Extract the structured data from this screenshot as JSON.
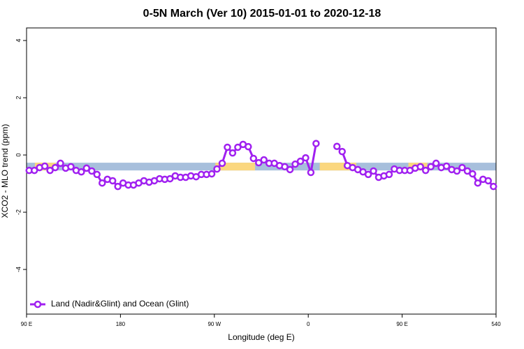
{
  "chart_data": {
    "type": "line",
    "title": "0-5N March (Ver 10)   2015-01-01 to 2020-12-18",
    "xlabel": "Longitude (deg E)",
    "ylabel": "XCO2 - MLO trend (ppm)",
    "xlim": [
      90,
      540
    ],
    "ylim": [
      -5.56,
      4.44
    ],
    "xticks": [
      {
        "value": 90,
        "label": "90 E"
      },
      180,
      {
        "value": 270,
        "label": "90 W"
      },
      {
        "value": 360,
        "label": "0"
      },
      {
        "value": 450,
        "label": "90 E"
      },
      540
    ],
    "yticks": [
      -4,
      -2,
      0,
      2,
      4
    ],
    "legend": "bottom-left",
    "band": {
      "y": [
        -0.54,
        -0.27
      ],
      "color": "#a7bfdc",
      "land_color": "#fbd77e",
      "land": [
        [
          98,
          118
        ],
        [
          271,
          309
        ],
        [
          371,
          406
        ],
        [
          456,
          474
        ]
      ]
    },
    "x": [
      92.5,
      97.5,
      102.5,
      107.5,
      112.5,
      117.5,
      122.5,
      127.5,
      132.5,
      137.5,
      142.5,
      147.5,
      152.5,
      157.5,
      162.5,
      167.5,
      172.5,
      177.5,
      182.5,
      187.5,
      192.5,
      197.5,
      202.5,
      207.5,
      212.5,
      217.5,
      222.5,
      227.5,
      232.5,
      237.5,
      242.5,
      247.5,
      252.5,
      257.5,
      262.5,
      267.5,
      272.5,
      277.5,
      282.5,
      287.5,
      292.5,
      297.5,
      302.5,
      307.5,
      312.5,
      317.5,
      322.5,
      327.5,
      332.5,
      337.5,
      342.5,
      347.5,
      352.5,
      357.5,
      362.5,
      367.5,
      372.5,
      377.5,
      382.5,
      387.5,
      392.5,
      397.5,
      402.5,
      407.5,
      412.5,
      417.5,
      422.5,
      427.5,
      432.5,
      437.5,
      442.5,
      447.5,
      452.5,
      457.5,
      462.5,
      467.5,
      472.5,
      477.5,
      482.5,
      487.5,
      492.5,
      497.5,
      502.5,
      507.5,
      512.5,
      517.5,
      522.5,
      527.5,
      532.5,
      537.5
    ],
    "series": [
      {
        "name": "Land (Nadir&Glint) and Ocean (Glint)",
        "color": "#a020f0",
        "values": [
          -0.54,
          -0.54,
          -0.44,
          -0.39,
          -0.54,
          -0.44,
          -0.29,
          -0.46,
          -0.41,
          -0.54,
          -0.59,
          -0.46,
          -0.56,
          -0.68,
          -0.98,
          -0.85,
          -0.9,
          -1.1,
          -0.98,
          -1.05,
          -1.05,
          -0.98,
          -0.9,
          -0.95,
          -0.9,
          -0.83,
          -0.85,
          -0.83,
          -0.73,
          -0.78,
          -0.78,
          -0.73,
          -0.76,
          -0.68,
          -0.68,
          -0.66,
          -0.49,
          -0.29,
          0.27,
          0.07,
          0.27,
          0.37,
          0.29,
          -0.12,
          -0.27,
          -0.17,
          -0.29,
          -0.29,
          -0.37,
          -0.41,
          -0.51,
          -0.32,
          -0.22,
          -0.1,
          -0.61,
          0.4,
          null,
          null,
          null,
          0.3,
          0.12,
          -0.37,
          -0.44,
          -0.51,
          -0.59,
          -0.68,
          -0.56,
          -0.78,
          -0.73,
          -0.68,
          -0.49,
          -0.54,
          -0.54,
          -0.54,
          -0.46,
          -0.41,
          -0.54,
          -0.41,
          -0.29,
          -0.44,
          -0.39,
          -0.51,
          -0.56,
          -0.44,
          -0.56,
          -0.66,
          -0.98,
          -0.85,
          -0.9,
          -1.1
        ]
      }
    ]
  }
}
